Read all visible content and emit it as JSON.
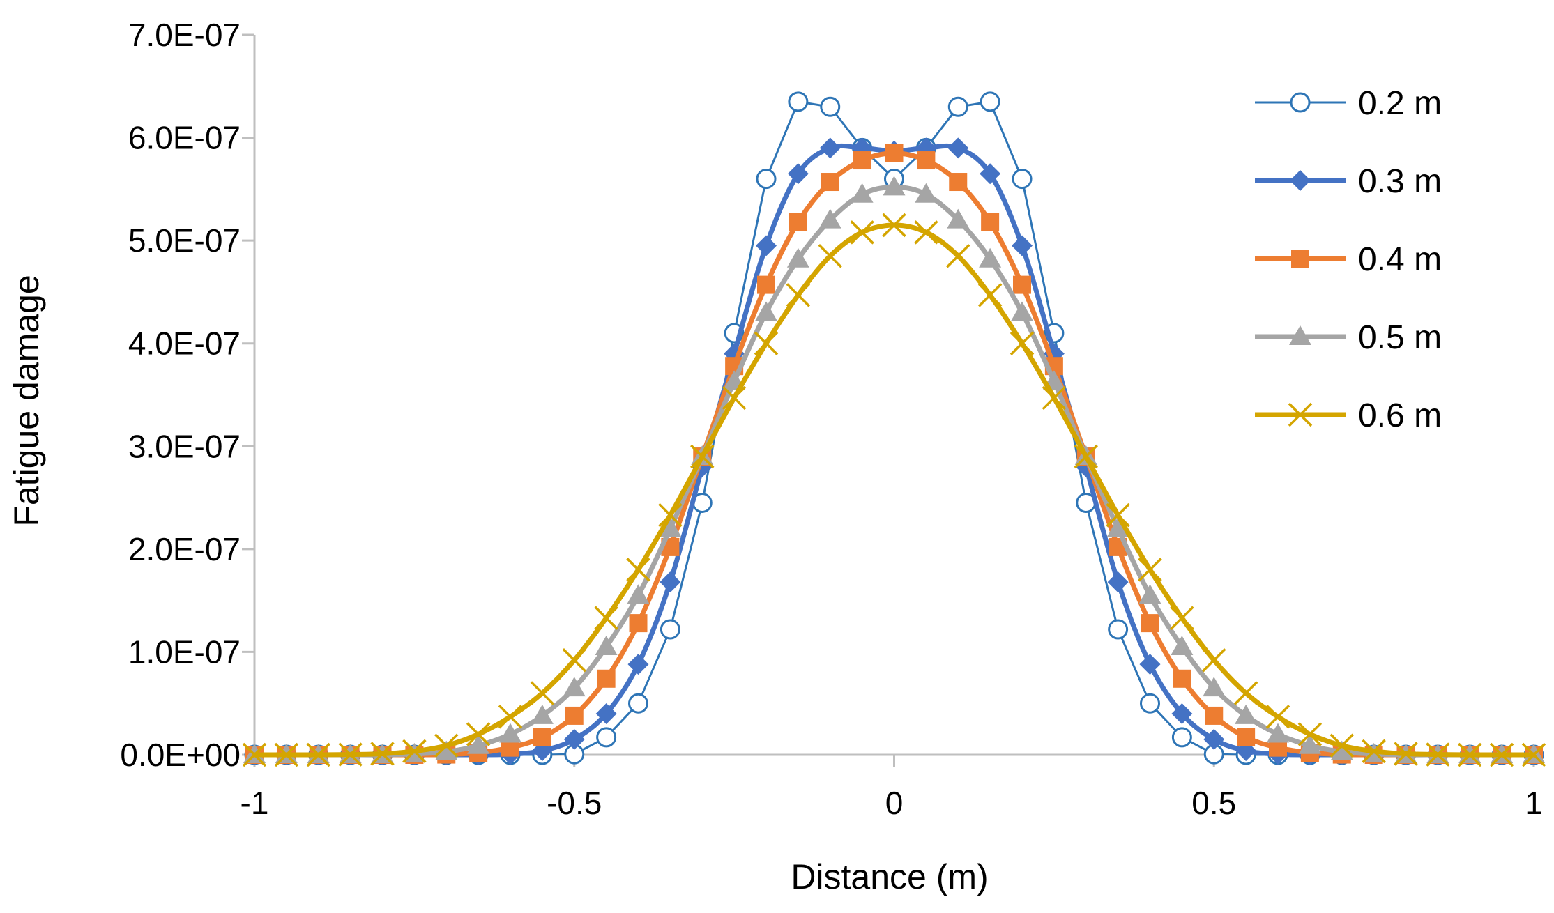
{
  "chart_data": {
    "type": "line",
    "title": "",
    "xlabel": "Distance (m)",
    "ylabel": "Fatigue damage",
    "xlim": [
      -1,
      1
    ],
    "ylim": [
      0,
      7e-07
    ],
    "x_ticks": [
      -1,
      -0.5,
      0,
      0.5,
      1
    ],
    "x_tick_labels": [
      "-1",
      "-0.5",
      "0",
      "0.5",
      "1"
    ],
    "y_ticks": [
      0,
      1e-07,
      2e-07,
      3e-07,
      4e-07,
      5e-07,
      6e-07,
      7e-07
    ],
    "y_tick_labels": [
      "0.0E+00",
      "1.0E-07",
      "2.0E-07",
      "3.0E-07",
      "4.0E-07",
      "5.0E-07",
      "6.0E-07",
      "7.0E-07"
    ],
    "grid": false,
    "legend_position": "top-right",
    "x": [
      -1,
      -0.95,
      -0.9,
      -0.85,
      -0.8,
      -0.75,
      -0.7,
      -0.65,
      -0.6,
      -0.55,
      -0.5,
      -0.45,
      -0.4,
      -0.35,
      -0.3,
      -0.25,
      -0.2,
      -0.15,
      -0.1,
      -0.05,
      0,
      0.05,
      0.1,
      0.15,
      0.2,
      0.25,
      0.3,
      0.35,
      0.4,
      0.45,
      0.5,
      0.55,
      0.6,
      0.65,
      0.7,
      0.75,
      0.8,
      0.85,
      0.9,
      0.95,
      1
    ],
    "series": [
      {
        "name": "0.2 m",
        "color": "#2E75B6",
        "marker": "circle-open",
        "values": [
          0,
          0,
          0,
          0,
          0,
          0,
          0,
          0,
          0,
          0,
          6e-10,
          1.7e-08,
          5e-08,
          1.22e-07,
          2.45e-07,
          4.1e-07,
          5.6e-07,
          6.35e-07,
          6.3e-07,
          5.9e-07,
          5.6e-07,
          5.9e-07,
          6.3e-07,
          6.35e-07,
          5.6e-07,
          4.1e-07,
          2.45e-07,
          1.22e-07,
          5e-08,
          1.7e-08,
          6e-10,
          0,
          0,
          0,
          0,
          0,
          0,
          0,
          0,
          0,
          0
        ]
      },
      {
        "name": "0.3 m",
        "color": "#4472C4",
        "marker": "diamond",
        "values": [
          0,
          0,
          0,
          0,
          0,
          0,
          0,
          0,
          5e-10,
          4e-09,
          1.5e-08,
          4e-08,
          8.8e-08,
          1.68e-07,
          2.8e-07,
          3.9e-07,
          4.95e-07,
          5.65e-07,
          5.9e-07,
          5.9e-07,
          5.87e-07,
          5.9e-07,
          5.9e-07,
          5.65e-07,
          4.95e-07,
          3.9e-07,
          2.8e-07,
          1.68e-07,
          8.8e-08,
          4e-08,
          1.5e-08,
          4e-09,
          5e-10,
          0,
          0,
          0,
          0,
          0,
          0,
          0,
          0
        ]
      },
      {
        "name": "0.4 m",
        "color": "#ED7D31",
        "marker": "square",
        "values": [
          0,
          0,
          0,
          0,
          0,
          0,
          3e-10,
          2e-09,
          7e-09,
          1.7e-08,
          3.8e-08,
          7.4e-08,
          1.28e-07,
          2.02e-07,
          2.9e-07,
          3.78e-07,
          4.57e-07,
          5.18e-07,
          5.57e-07,
          5.78e-07,
          5.85e-07,
          5.78e-07,
          5.57e-07,
          5.18e-07,
          4.57e-07,
          3.78e-07,
          2.9e-07,
          2.02e-07,
          1.28e-07,
          7.4e-08,
          3.8e-08,
          1.7e-08,
          7e-09,
          2e-09,
          3e-10,
          0,
          0,
          0,
          0,
          0,
          0
        ]
      },
      {
        "name": "0.5 m",
        "color": "#A5A5A5",
        "marker": "triangle",
        "values": [
          0,
          0,
          0,
          0,
          0,
          8e-10,
          3e-09,
          9e-09,
          2e-08,
          3.8e-08,
          6.5e-08,
          1.05e-07,
          1.55e-07,
          2.2e-07,
          2.9e-07,
          3.63e-07,
          4.3e-07,
          4.82e-07,
          5.2e-07,
          5.45e-07,
          5.52e-07,
          5.45e-07,
          5.2e-07,
          4.82e-07,
          4.3e-07,
          3.63e-07,
          2.9e-07,
          2.2e-07,
          1.55e-07,
          1.05e-07,
          6.5e-08,
          3.8e-08,
          2e-08,
          9e-09,
          3e-09,
          8e-10,
          0,
          0,
          0,
          0,
          0
        ]
      },
      {
        "name": "0.6 m",
        "color": "#D4A500",
        "marker": "x",
        "values": [
          0,
          0,
          0,
          3e-10,
          1e-09,
          3.5e-09,
          9e-09,
          2e-08,
          3.7e-08,
          6e-08,
          9.2e-08,
          1.33e-07,
          1.8e-07,
          2.33e-07,
          2.9e-07,
          3.47e-07,
          4e-07,
          4.47e-07,
          4.85e-07,
          5.08e-07,
          5.15e-07,
          5.08e-07,
          4.85e-07,
          4.47e-07,
          4e-07,
          3.47e-07,
          2.9e-07,
          2.33e-07,
          1.8e-07,
          1.33e-07,
          9.2e-08,
          6e-08,
          3.7e-08,
          2e-08,
          9e-09,
          3.5e-09,
          1e-09,
          3e-10,
          0,
          0,
          0
        ]
      }
    ]
  }
}
